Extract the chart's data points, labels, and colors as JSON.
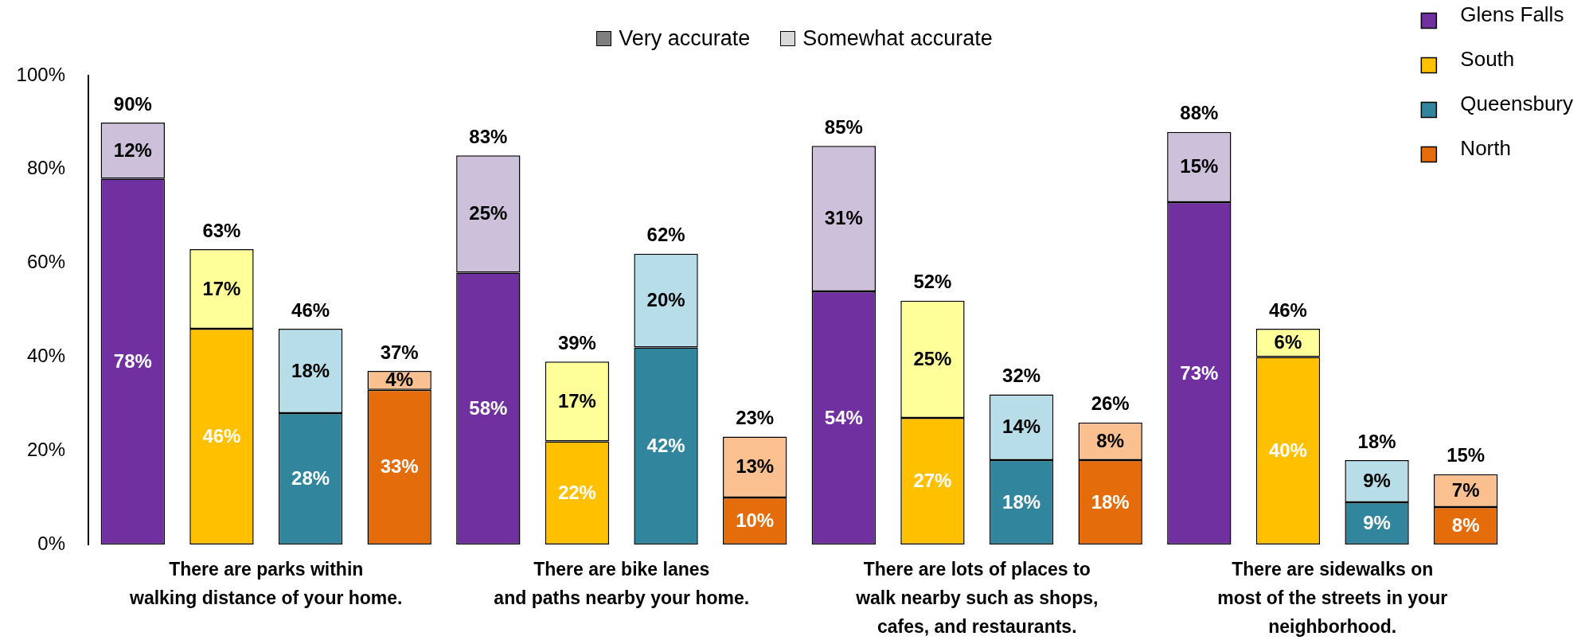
{
  "chart_data": {
    "type": "bar",
    "stacked": true,
    "categories": [
      null,
      null,
      null,
      null,
      null,
      null,
      null,
      null,
      null,
      null,
      null,
      null,
      null,
      null,
      null,
      null
    ],
    "series": [
      {
        "name": "Glens Falls",
        "color": "#7030a0",
        "values": [
          78,
          null,
          null,
          null,
          58,
          null,
          null,
          null,
          54,
          null,
          null,
          null,
          73,
          null,
          null,
          null
        ],
        "value_labels": [
          "78%",
          null,
          null,
          null,
          "58%",
          null,
          null,
          null,
          "54%",
          null,
          null,
          null,
          "73%",
          null,
          null,
          null
        ]
      },
      {
        "color": "#ccc0da",
        "values": [
          12,
          null,
          null,
          null,
          25,
          null,
          null,
          null,
          31,
          null,
          null,
          null,
          15,
          null,
          null,
          null
        ],
        "value_labels": [
          "12%",
          null,
          null,
          null,
          "25%",
          null,
          null,
          null,
          "31%",
          null,
          null,
          null,
          "15%",
          null,
          null,
          null
        ]
      },
      {
        "name": "South",
        "color": "#ffc000",
        "values": [
          null,
          46,
          null,
          null,
          null,
          22,
          null,
          null,
          null,
          27,
          null,
          null,
          null,
          40,
          null,
          null
        ],
        "value_labels": [
          null,
          "46%",
          null,
          null,
          null,
          "22%",
          null,
          null,
          null,
          "27%",
          null,
          null,
          null,
          "40%",
          null,
          null
        ]
      },
      {
        "color": "#ffff99",
        "values": [
          null,
          17,
          null,
          null,
          null,
          17,
          null,
          null,
          null,
          25,
          null,
          null,
          null,
          6,
          null,
          null
        ],
        "value_labels": [
          null,
          "17%",
          null,
          null,
          null,
          "17%",
          null,
          null,
          null,
          "25%",
          null,
          null,
          null,
          "6%",
          null,
          null
        ]
      },
      {
        "name": "Queensbury",
        "color": "#31859c",
        "values": [
          null,
          null,
          28,
          null,
          null,
          null,
          42,
          null,
          null,
          null,
          18,
          null,
          null,
          null,
          9,
          null
        ],
        "value_labels": [
          null,
          null,
          "28%",
          null,
          null,
          null,
          "42%",
          null,
          null,
          null,
          "18%",
          null,
          null,
          null,
          "9%",
          null
        ]
      },
      {
        "color": "#b7dee8",
        "values": [
          null,
          null,
          18,
          null,
          null,
          null,
          20,
          null,
          null,
          null,
          14,
          null,
          null,
          null,
          9,
          null
        ],
        "value_labels": [
          null,
          null,
          "18%",
          null,
          null,
          null,
          "20%",
          null,
          null,
          null,
          "14%",
          null,
          null,
          null,
          "9%",
          null
        ]
      },
      {
        "name": "North",
        "color": "#e46c0a",
        "values": [
          null,
          null,
          null,
          33,
          null,
          null,
          null,
          10,
          null,
          null,
          null,
          18,
          null,
          null,
          null,
          8
        ],
        "value_labels": [
          null,
          null,
          null,
          "33%",
          null,
          null,
          null,
          "10%",
          null,
          null,
          null,
          "18%",
          null,
          null,
          null,
          "8%"
        ]
      },
      {
        "color": "#fac090",
        "values": [
          null,
          null,
          null,
          4,
          null,
          null,
          null,
          13,
          null,
          null,
          null,
          8,
          null,
          null,
          null,
          7
        ],
        "value_labels": [
          null,
          null,
          null,
          "4%",
          null,
          null,
          null,
          "13%",
          null,
          null,
          null,
          "8%",
          null,
          null,
          null,
          "7%"
        ]
      }
    ],
    "totals": [
      "90%",
      "63%",
      "46%",
      "37%",
      "83%",
      "39%",
      "62%",
      "23%",
      "85%",
      "52%",
      "32%",
      "26%",
      "88%",
      "46%",
      "18%",
      "15%"
    ],
    "ylim": [
      0,
      100
    ],
    "yticks": [
      {
        "value": 0,
        "label": "0%"
      },
      {
        "value": 20,
        "label": "20%"
      },
      {
        "value": 40,
        "label": "40%"
      },
      {
        "value": 60,
        "label": "60%"
      },
      {
        "value": 80,
        "label": "80%"
      },
      {
        "value": 100,
        "label": "100%"
      }
    ],
    "tick_labels": "y",
    "legend": "top right",
    "annotations": [
      "Very accurate",
      "Somewhat accurate",
      "There are parks within\nwalking distance of your home.",
      "There are bike lanes\nand paths nearby your home.",
      "There are lots of places to\nwalk nearby such as shops,\ncafes, and restaurants.",
      "There are sidewalks on\nmost of the streets in your\nneighborhood."
    ]
  }
}
